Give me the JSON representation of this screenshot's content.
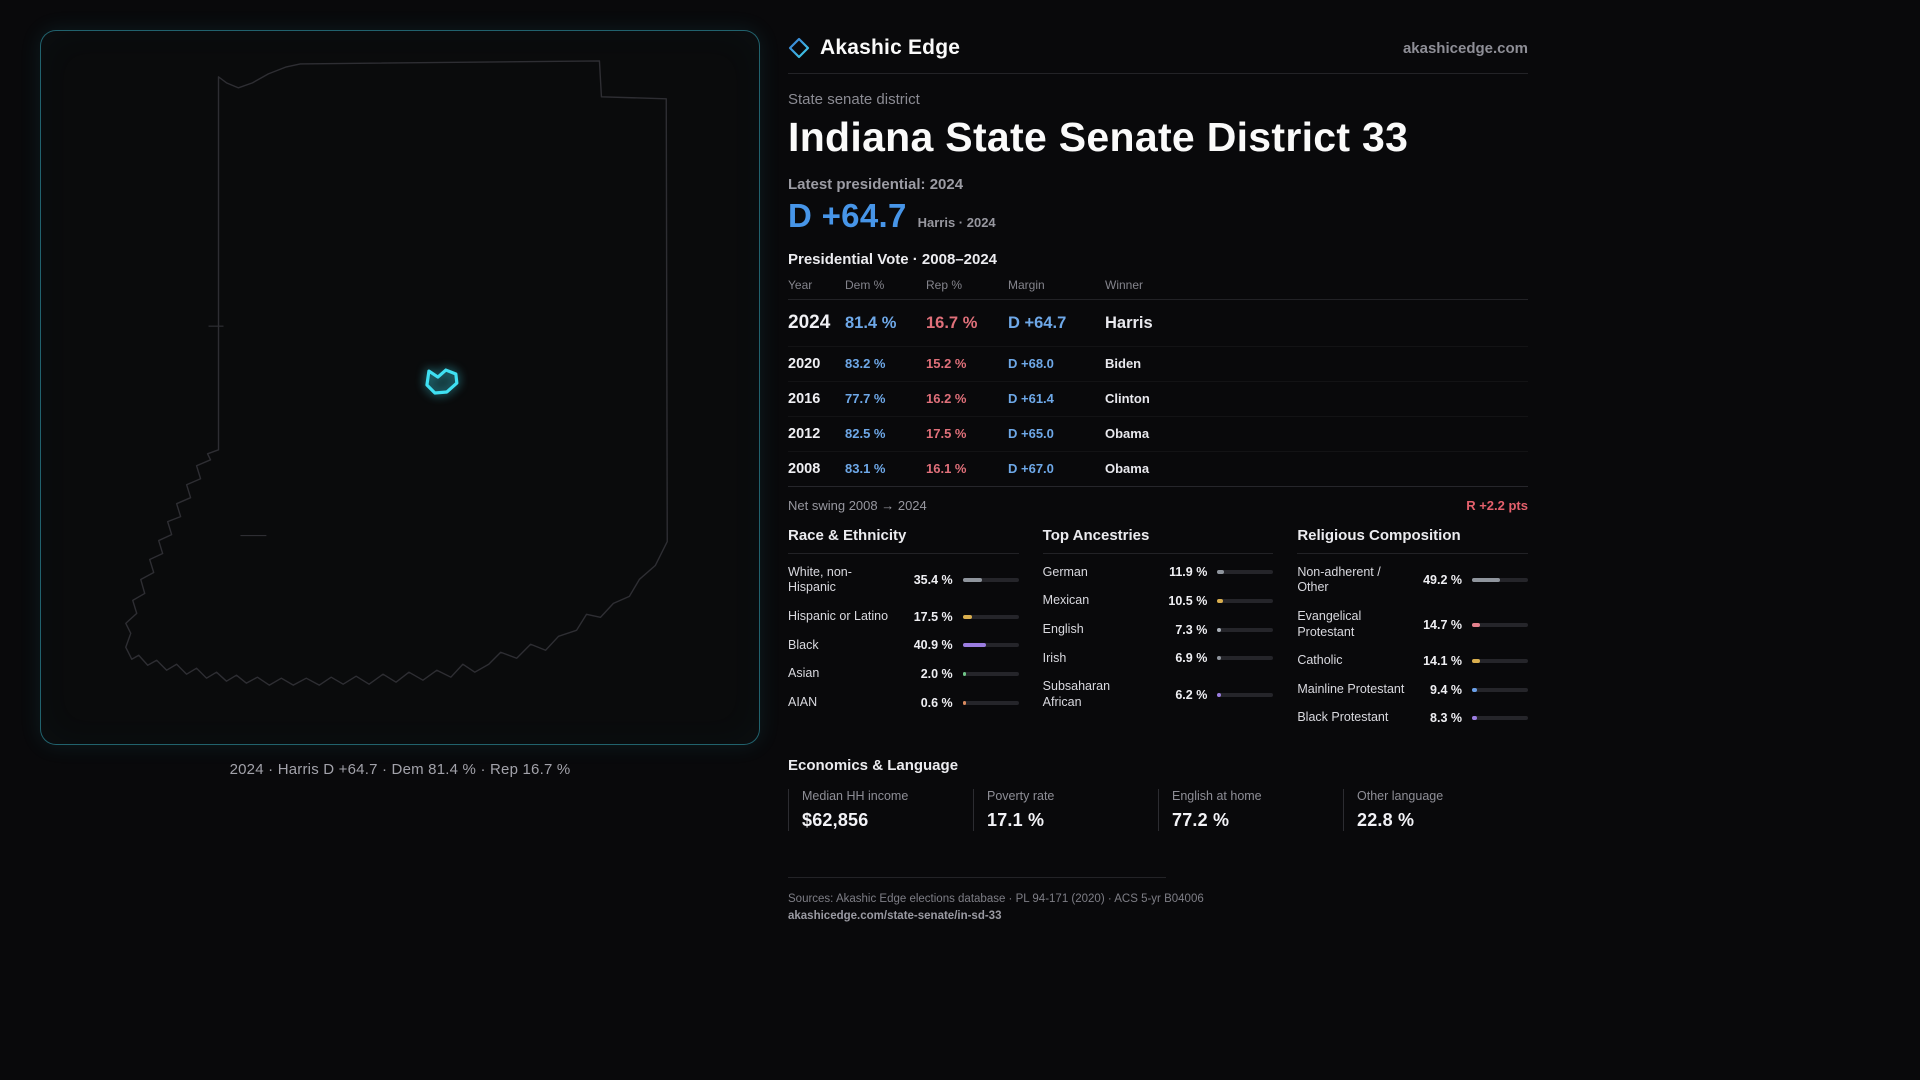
{
  "brand": {
    "name": "Akashic Edge",
    "domain": "akashicedge.com"
  },
  "page": {
    "kicker": "State senate district",
    "title": "Indiana State Senate District 33",
    "latest_label": "Latest presidential: 2024",
    "headline_margin": "D +64.7",
    "headline_sub": "Harris · 2024"
  },
  "map": {
    "caption": "2024 · Harris D +64.7 · Dem 81.4 % · Rep 16.7 %",
    "district_color": "#3fe0f2"
  },
  "vote_table": {
    "title": "Presidential Vote · 2008–2024",
    "columns": [
      "Year",
      "Dem %",
      "Rep %",
      "Margin",
      "Winner"
    ],
    "rows": [
      {
        "year": "2024",
        "dem": "81.4 %",
        "rep": "16.7 %",
        "margin": "D +64.7",
        "winner": "Harris"
      },
      {
        "year": "2020",
        "dem": "83.2 %",
        "rep": "15.2 %",
        "margin": "D +68.0",
        "winner": "Biden"
      },
      {
        "year": "2016",
        "dem": "77.7 %",
        "rep": "16.2 %",
        "margin": "D +61.4",
        "winner": "Clinton"
      },
      {
        "year": "2012",
        "dem": "82.5 %",
        "rep": "17.5 %",
        "margin": "D +65.0",
        "winner": "Obama"
      },
      {
        "year": "2008",
        "dem": "83.1 %",
        "rep": "16.1 %",
        "margin": "D +67.0",
        "winner": "Obama"
      }
    ],
    "net_swing_label": "Net swing 2008 → 2024",
    "net_swing_value": "R +2.2 pts"
  },
  "demographics": {
    "race": {
      "title": "Race & Ethnicity",
      "rows": [
        {
          "label": "White, non-Hispanic",
          "value": "35.4 %",
          "pct": 35.4,
          "color": "#8f959d"
        },
        {
          "label": "Hispanic or Latino",
          "value": "17.5 %",
          "pct": 17.5,
          "color": "#d9ae4e"
        },
        {
          "label": "Black",
          "value": "40.9 %",
          "pct": 40.9,
          "color": "#9b7de0"
        },
        {
          "label": "Asian",
          "value": "2.0 %",
          "pct": 2.0,
          "color": "#6fc487"
        },
        {
          "label": "AIAN",
          "value": "0.6 %",
          "pct": 0.6,
          "color": "#d98a5f"
        }
      ]
    },
    "ancestry": {
      "title": "Top Ancestries",
      "rows": [
        {
          "label": "German",
          "value": "11.9 %",
          "pct": 11.9,
          "color": "#8f959d"
        },
        {
          "label": "Mexican",
          "value": "10.5 %",
          "pct": 10.5,
          "color": "#d9ae4e"
        },
        {
          "label": "English",
          "value": "7.3 %",
          "pct": 7.3,
          "color": "#aab0b8"
        },
        {
          "label": "Irish",
          "value": "6.9 %",
          "pct": 6.9,
          "color": "#8f959d"
        },
        {
          "label": "Subsaharan African",
          "value": "6.2 %",
          "pct": 6.2,
          "color": "#9b7de0"
        }
      ]
    },
    "religion": {
      "title": "Religious Composition",
      "rows": [
        {
          "label": "Non-adherent / Other",
          "value": "49.2 %",
          "pct": 49.2,
          "color": "#8f959d"
        },
        {
          "label": "Evangelical Protestant",
          "value": "14.7 %",
          "pct": 14.7,
          "color": "#e3808c"
        },
        {
          "label": "Catholic",
          "value": "14.1 %",
          "pct": 14.1,
          "color": "#d9ae4e"
        },
        {
          "label": "Mainline Protestant",
          "value": "9.4 %",
          "pct": 9.4,
          "color": "#6a9fe8"
        },
        {
          "label": "Black Protestant",
          "value": "8.3 %",
          "pct": 8.3,
          "color": "#9b7de0"
        }
      ]
    }
  },
  "economics": {
    "title": "Economics & Language",
    "stats": [
      {
        "label": "Median HH income",
        "value": "$62,856"
      },
      {
        "label": "Poverty rate",
        "value": "17.1 %"
      },
      {
        "label": "English at home",
        "value": "77.2 %"
      },
      {
        "label": "Other language",
        "value": "22.8 %"
      }
    ]
  },
  "footer": {
    "sources": "Sources: Akashic Edge elections database · PL 94-171 (2020) · ACS 5-yr B04006",
    "permalink": "akashicedge.com/state-senate/in-sd-33"
  },
  "colors": {
    "dem": "#6ea8e8",
    "rep": "#e0707a",
    "accent": "#3fe0f2",
    "swing_rep": "#e4606c"
  },
  "chart_data": [
    {
      "type": "table",
      "title": "Presidential Vote · 2008–2024",
      "columns": [
        "Year",
        "Dem %",
        "Rep %",
        "Margin",
        "Winner"
      ],
      "rows": [
        [
          "2024",
          81.4,
          16.7,
          "D +64.7",
          "Harris"
        ],
        [
          "2020",
          83.2,
          15.2,
          "D +68.0",
          "Biden"
        ],
        [
          "2016",
          77.7,
          16.2,
          "D +61.4",
          "Clinton"
        ],
        [
          "2012",
          82.5,
          17.5,
          "D +65.0",
          "Obama"
        ],
        [
          "2008",
          83.1,
          16.1,
          "D +67.0",
          "Obama"
        ]
      ],
      "annotations": {
        "net_swing": "R +2.2 pts",
        "headline": "D +64.7 Harris 2024"
      }
    },
    {
      "type": "bar",
      "title": "Race & Ethnicity",
      "categories": [
        "White, non-Hispanic",
        "Hispanic or Latino",
        "Black",
        "Asian",
        "AIAN"
      ],
      "values": [
        35.4,
        17.5,
        40.9,
        2.0,
        0.6
      ],
      "xlabel": "",
      "ylabel": "",
      "xlim": [
        0,
        100
      ],
      "unit": "%"
    },
    {
      "type": "bar",
      "title": "Top Ancestries",
      "categories": [
        "German",
        "Mexican",
        "English",
        "Irish",
        "Subsaharan African"
      ],
      "values": [
        11.9,
        10.5,
        7.3,
        6.9,
        6.2
      ],
      "xlabel": "",
      "ylabel": "",
      "xlim": [
        0,
        100
      ],
      "unit": "%"
    },
    {
      "type": "bar",
      "title": "Religious Composition",
      "categories": [
        "Non-adherent / Other",
        "Evangelical Protestant",
        "Catholic",
        "Mainline Protestant",
        "Black Protestant"
      ],
      "values": [
        49.2,
        14.7,
        14.1,
        9.4,
        8.3
      ],
      "xlabel": "",
      "ylabel": "",
      "xlim": [
        0,
        100
      ],
      "unit": "%"
    },
    {
      "type": "table",
      "title": "Economics & Language",
      "columns": [
        "Median HH income",
        "Poverty rate",
        "English at home",
        "Other language"
      ],
      "rows": [
        [
          "$62,856",
          "17.1 %",
          "77.2 %",
          "22.8 %"
        ]
      ]
    }
  ]
}
